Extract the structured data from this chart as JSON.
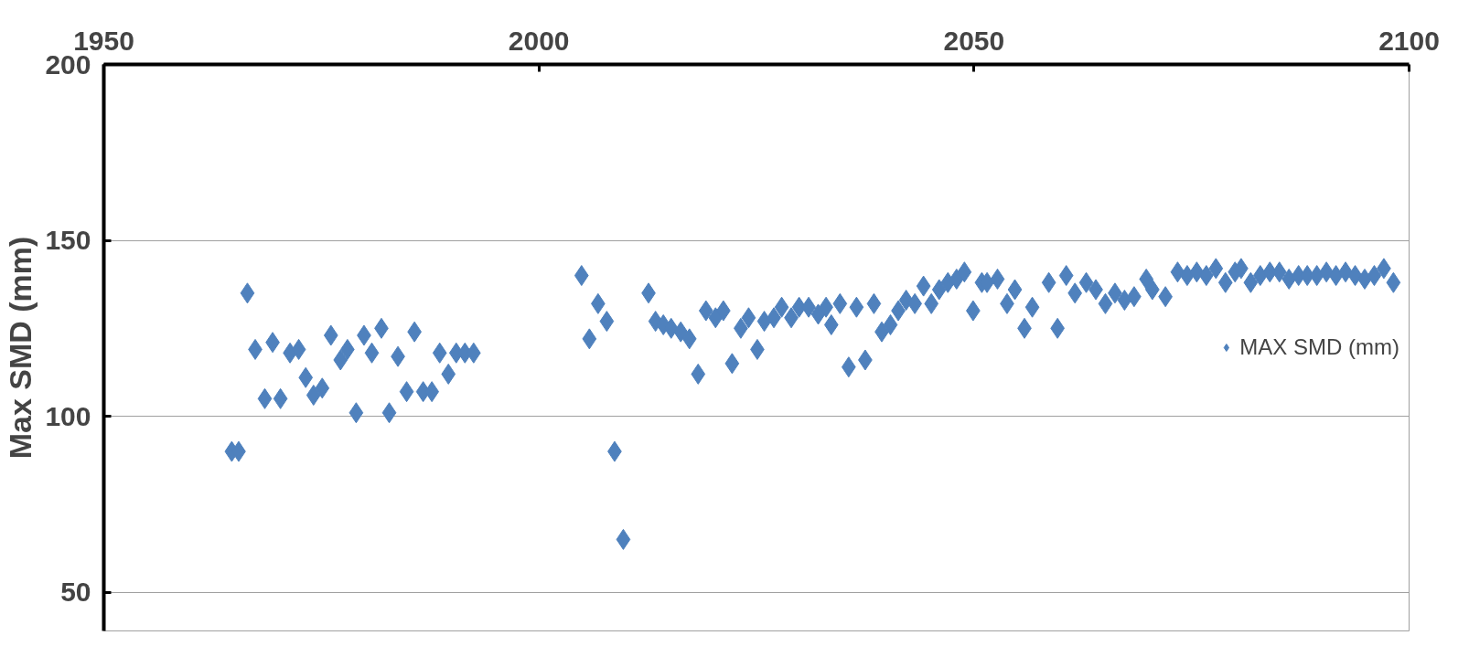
{
  "chart_data": {
    "type": "scatter",
    "ylabel": "Max SMD (mm)",
    "xlim": [
      1950,
      2100
    ],
    "xticks": [
      1950,
      2000,
      2050,
      2100
    ],
    "ylim": [
      39,
      200
    ],
    "yticks": [
      50,
      100,
      150,
      200
    ],
    "grid": "y",
    "legend": "right",
    "marker": "diamond",
    "tick_labels": "xy",
    "series": [
      {
        "name": "MAX SMD (mm)",
        "color": "#4f81bd",
        "x": [
          1964.7,
          1965.5,
          1966.5,
          1967.4,
          1968.5,
          1969.4,
          1970.3,
          1971.4,
          1972.4,
          1973.2,
          1974.1,
          1975.1,
          1976.1,
          1977.2,
          1978.0,
          1979.0,
          1979.9,
          1980.8,
          1981.9,
          1982.8,
          1983.8,
          1984.8,
          1985.7,
          1986.7,
          1987.7,
          1988.6,
          1989.6,
          1990.5,
          1991.5,
          1992.5,
          2004.9,
          2005.8,
          2006.8,
          2007.8,
          2008.7,
          2009.7,
          2012.6,
          2013.4,
          2014.3,
          2015.2,
          2016.3,
          2017.3,
          2018.3,
          2019.2,
          2020.3,
          2021.2,
          2022.2,
          2023.2,
          2024.1,
          2025.1,
          2025.9,
          2027.0,
          2027.9,
          2029.0,
          2029.9,
          2031.0,
          2032.1,
          2033.0,
          2033.6,
          2034.6,
          2035.6,
          2036.5,
          2037.5,
          2038.5,
          2039.4,
          2040.4,
          2041.3,
          2042.2,
          2043.2,
          2044.2,
          2045.1,
          2046.0,
          2047.0,
          2048.0,
          2048.9,
          2049.9,
          2050.9,
          2051.5,
          2052.7,
          2053.8,
          2054.7,
          2055.8,
          2056.7,
          2058.6,
          2059.6,
          2060.6,
          2061.6,
          2062.9,
          2064.0,
          2065.1,
          2066.2,
          2067.3,
          2068.4,
          2069.8,
          2070.5,
          2072.0,
          2073.4,
          2074.5,
          2075.6,
          2076.7,
          2077.8,
          2078.9,
          2080.0,
          2080.7,
          2081.8,
          2082.9,
          2084.0,
          2085.1,
          2086.2,
          2087.3,
          2088.3,
          2089.4,
          2090.5,
          2091.6,
          2092.7,
          2093.8,
          2094.9,
          2096.0,
          2097.1,
          2098.2
        ],
        "values": [
          90,
          90,
          135,
          119,
          105,
          121,
          105,
          118,
          119,
          111,
          106,
          108,
          123,
          116,
          119,
          101,
          123,
          118,
          125,
          101,
          117,
          107,
          124,
          107,
          107,
          118,
          112,
          118,
          118,
          118,
          140,
          122,
          132,
          127,
          90,
          65,
          135,
          127,
          126,
          125,
          124,
          122,
          112,
          130,
          128,
          130,
          115,
          125,
          128,
          119,
          127,
          128,
          131,
          128,
          131,
          131,
          129,
          131,
          126,
          132,
          114,
          131,
          116,
          132,
          124,
          126,
          130,
          133,
          132,
          137,
          132,
          136,
          138,
          139,
          141,
          130,
          138,
          138,
          139,
          132,
          136,
          125,
          131,
          138,
          125,
          140,
          135,
          138,
          136,
          132,
          135,
          133,
          134,
          139,
          136,
          134,
          141,
          140,
          141,
          140,
          142,
          138,
          141,
          142,
          138,
          140,
          141,
          141,
          139,
          140,
          140,
          140,
          141,
          140,
          141,
          140,
          139,
          140,
          142,
          138
        ]
      }
    ]
  }
}
